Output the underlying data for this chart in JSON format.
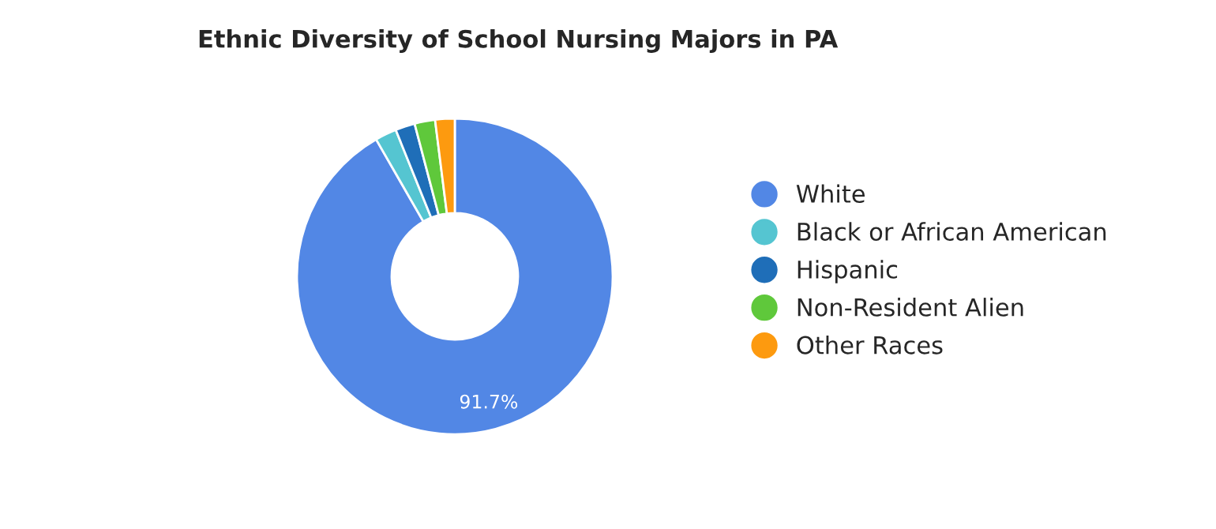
{
  "chart_data": {
    "type": "donut",
    "title": "Ethnic Diversity of School Nursing Majors in PA",
    "categories": [
      "White",
      "Black or African American",
      "Hispanic",
      "Non-Resident Alien",
      "Other Races"
    ],
    "values": [
      91.7,
      2.2,
      2.0,
      2.1,
      2.0
    ],
    "colors": [
      "#5287e5",
      "#55c5d1",
      "#1f6eb8",
      "#5fc83b",
      "#fd9a0f"
    ],
    "value_labels": [
      "91.7%",
      null,
      null,
      null,
      null
    ],
    "legend": "right"
  }
}
